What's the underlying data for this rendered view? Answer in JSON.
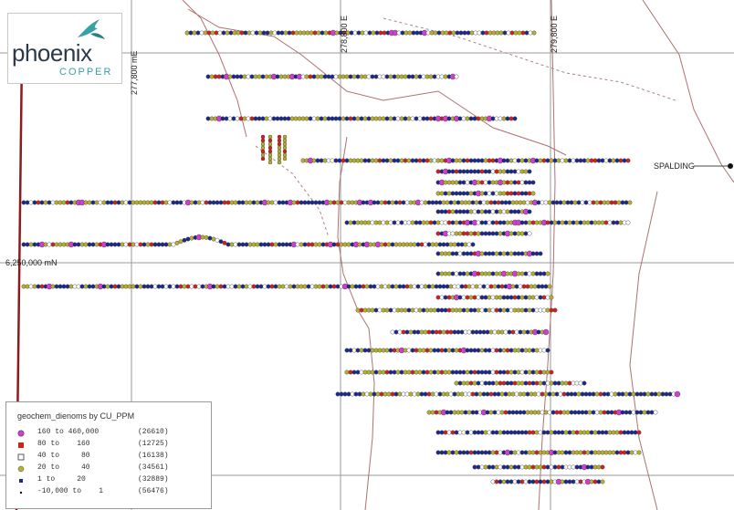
{
  "logo": {
    "name": "phoenix",
    "sub": "COPPER",
    "colors": {
      "text": "#2b3a4a",
      "accent": "#3aa0a8"
    }
  },
  "grid_labels": {
    "easting_1": "277,800 mE",
    "easting_2": "278,800 E",
    "easting_3": "279,800 E",
    "northing": "6,250,000 mN"
  },
  "place_label": "SPALDING",
  "legend": {
    "title": "geochem_dienoms by CU_PPM",
    "items": [
      {
        "symbol": "circle-magenta",
        "color": "#d040d0",
        "range": "160 to 460,000",
        "count": "(26610)"
      },
      {
        "symbol": "square-red",
        "color": "#d02020",
        "range": "80 to    160",
        "count": "(12725)"
      },
      {
        "symbol": "square-white",
        "color": "#ffffff",
        "range": "40 to     80",
        "count": "(16138)"
      },
      {
        "symbol": "circle-olive",
        "color": "#b8b030",
        "range": "20 to     40",
        "count": "(34561)"
      },
      {
        "symbol": "square-navy",
        "color": "#1c2a8c",
        "range": "1 to     20",
        "count": "(32889)"
      },
      {
        "symbol": "dot-black",
        "color": "#111111",
        "range": "-10,000 to    1",
        "count": "(56476)"
      }
    ]
  },
  "colors": {
    "grid": "#9a9a9a",
    "roads": "#b07070",
    "tracks": "#b08080",
    "boundary": "#8a1c1c"
  }
}
